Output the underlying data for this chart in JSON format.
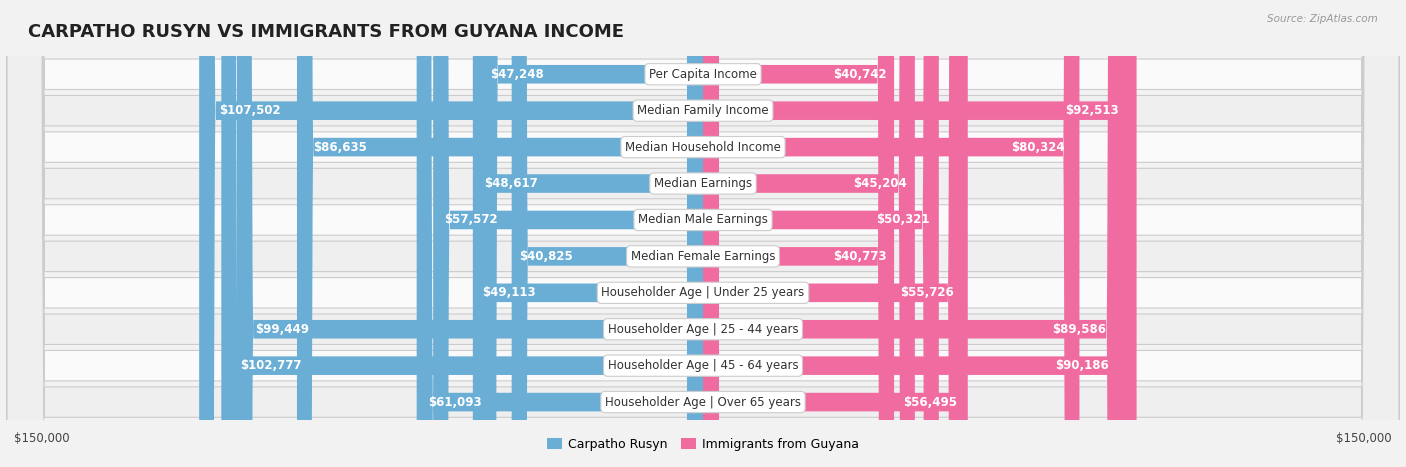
{
  "title": "CARPATHO RUSYN VS IMMIGRANTS FROM GUYANA INCOME",
  "source": "Source: ZipAtlas.com",
  "categories": [
    "Per Capita Income",
    "Median Family Income",
    "Median Household Income",
    "Median Earnings",
    "Median Male Earnings",
    "Median Female Earnings",
    "Householder Age | Under 25 years",
    "Householder Age | 25 - 44 years",
    "Householder Age | 45 - 64 years",
    "Householder Age | Over 65 years"
  ],
  "left_values": [
    47248,
    107502,
    86635,
    48617,
    57572,
    40825,
    49113,
    99449,
    102777,
    61093
  ],
  "right_values": [
    40742,
    92513,
    80324,
    45204,
    50321,
    40773,
    55726,
    89586,
    90186,
    56495
  ],
  "left_labels": [
    "$47,248",
    "$107,502",
    "$86,635",
    "$48,617",
    "$57,572",
    "$40,825",
    "$49,113",
    "$99,449",
    "$102,777",
    "$61,093"
  ],
  "right_labels": [
    "$40,742",
    "$92,513",
    "$80,324",
    "$45,204",
    "$50,321",
    "$40,773",
    "$55,726",
    "$89,586",
    "$90,186",
    "$56,495"
  ],
  "max_value": 150000,
  "left_color_light": "#A8CFED",
  "left_color_dark": "#6AADD5",
  "right_color_light": "#F9B8CF",
  "right_color_dark": "#F06CA0",
  "bg_color": "#F2F2F2",
  "row_bg_light": "#FAFAFA",
  "row_bg_dark": "#EFEFEF",
  "legend_left": "Carpatho Rusyn",
  "legend_right": "Immigrants from Guyana",
  "x_label_left": "$150,000",
  "x_label_right": "$150,000",
  "inside_threshold": 35000,
  "title_fontsize": 13,
  "label_fontsize": 8.5,
  "category_fontsize": 8.5
}
